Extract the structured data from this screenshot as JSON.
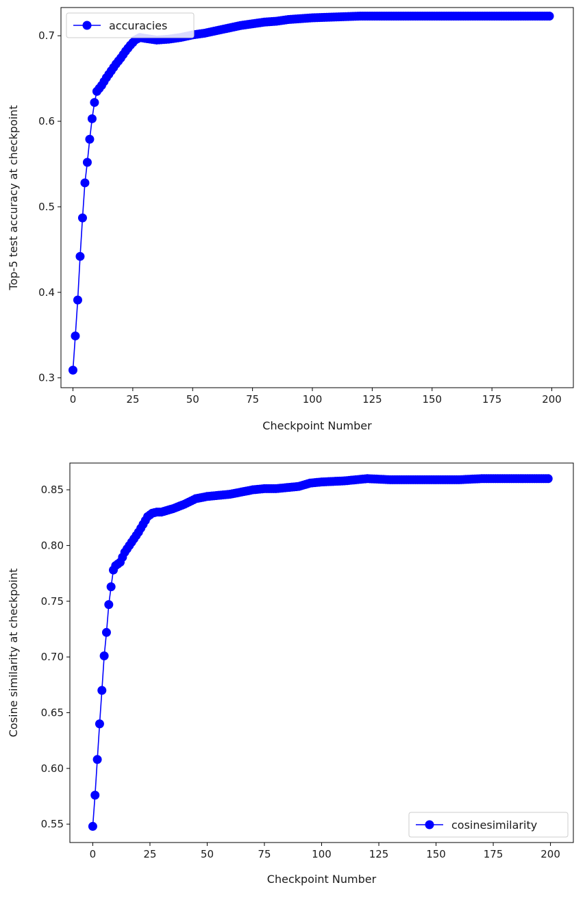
{
  "chart_data": [
    {
      "type": "line",
      "marker": "circle",
      "color": "#0000ff",
      "xlabel": "Checkpoint Number",
      "ylabel": "Top-5 test accuracy at checkpoint",
      "xlim": [
        -5,
        209
      ],
      "ylim": [
        0.2885,
        0.733
      ],
      "xticks": [
        0,
        25,
        50,
        75,
        100,
        125,
        150,
        175,
        200
      ],
      "yticks": [
        0.3,
        0.4,
        0.5,
        0.6,
        0.7
      ],
      "xtick_labels": [
        "0",
        "25",
        "50",
        "75",
        "100",
        "125",
        "150",
        "175",
        "200"
      ],
      "ytick_labels": [
        "0.3",
        "0.4",
        "0.5",
        "0.6",
        "0.7"
      ],
      "legend_position": "upper-left",
      "series": [
        {
          "name": "accuracies",
          "x": [
            0,
            199
          ],
          "y_points": [
            [
              0,
              0.309
            ],
            [
              1,
              0.349
            ],
            [
              2,
              0.391
            ],
            [
              3,
              0.442
            ],
            [
              4,
              0.487
            ],
            [
              5,
              0.528
            ],
            [
              6,
              0.552
            ],
            [
              7,
              0.579
            ],
            [
              8,
              0.603
            ],
            [
              9,
              0.622
            ],
            [
              10,
              0.635
            ],
            [
              12,
              0.642
            ],
            [
              14,
              0.651
            ],
            [
              16,
              0.659
            ],
            [
              18,
              0.667
            ],
            [
              20,
              0.674
            ],
            [
              22,
              0.682
            ],
            [
              24,
              0.689
            ],
            [
              26,
              0.695
            ],
            [
              28,
              0.698
            ],
            [
              30,
              0.697
            ],
            [
              35,
              0.695
            ],
            [
              40,
              0.696
            ],
            [
              45,
              0.698
            ],
            [
              50,
              0.701
            ],
            [
              55,
              0.703
            ],
            [
              60,
              0.706
            ],
            [
              65,
              0.709
            ],
            [
              70,
              0.712
            ],
            [
              75,
              0.714
            ],
            [
              80,
              0.716
            ],
            [
              85,
              0.717
            ],
            [
              90,
              0.719
            ],
            [
              95,
              0.72
            ],
            [
              100,
              0.721
            ],
            [
              110,
              0.722
            ],
            [
              120,
              0.723
            ],
            [
              130,
              0.723
            ],
            [
              140,
              0.723
            ],
            [
              150,
              0.723
            ],
            [
              160,
              0.723
            ],
            [
              170,
              0.723
            ],
            [
              180,
              0.723
            ],
            [
              190,
              0.723
            ],
            [
              199,
              0.723
            ]
          ]
        }
      ]
    },
    {
      "type": "line",
      "marker": "circle",
      "color": "#0000ff",
      "xlabel": "Checkpoint Number",
      "ylabel": "Cosine similarity at checkpoint",
      "xlim": [
        -10,
        210
      ],
      "ylim": [
        0.5335,
        0.874
      ],
      "xticks": [
        0,
        25,
        50,
        75,
        100,
        125,
        150,
        175,
        200
      ],
      "yticks": [
        0.55,
        0.6,
        0.65,
        0.7,
        0.75,
        0.8,
        0.85
      ],
      "xtick_labels": [
        "0",
        "25",
        "50",
        "75",
        "100",
        "125",
        "150",
        "175",
        "200"
      ],
      "ytick_labels": [
        "0.55",
        "0.60",
        "0.65",
        "0.70",
        "0.75",
        "0.80",
        "0.85"
      ],
      "legend_position": "lower-right",
      "series": [
        {
          "name": "cosinesimilarity",
          "x": [
            0,
            199
          ],
          "y_points": [
            [
              0,
              0.548
            ],
            [
              1,
              0.576
            ],
            [
              2,
              0.608
            ],
            [
              3,
              0.64
            ],
            [
              4,
              0.67
            ],
            [
              5,
              0.701
            ],
            [
              6,
              0.722
            ],
            [
              7,
              0.747
            ],
            [
              8,
              0.763
            ],
            [
              9,
              0.778
            ],
            [
              10,
              0.782
            ],
            [
              12,
              0.785
            ],
            [
              14,
              0.794
            ],
            [
              16,
              0.8
            ],
            [
              18,
              0.806
            ],
            [
              20,
              0.812
            ],
            [
              22,
              0.819
            ],
            [
              24,
              0.826
            ],
            [
              26,
              0.829
            ],
            [
              28,
              0.83
            ],
            [
              30,
              0.83
            ],
            [
              35,
              0.833
            ],
            [
              40,
              0.837
            ],
            [
              45,
              0.842
            ],
            [
              50,
              0.844
            ],
            [
              55,
              0.845
            ],
            [
              60,
              0.846
            ],
            [
              65,
              0.848
            ],
            [
              70,
              0.85
            ],
            [
              75,
              0.851
            ],
            [
              80,
              0.851
            ],
            [
              85,
              0.852
            ],
            [
              90,
              0.853
            ],
            [
              95,
              0.856
            ],
            [
              100,
              0.857
            ],
            [
              110,
              0.858
            ],
            [
              120,
              0.86
            ],
            [
              130,
              0.859
            ],
            [
              140,
              0.859
            ],
            [
              150,
              0.859
            ],
            [
              160,
              0.859
            ],
            [
              170,
              0.86
            ],
            [
              180,
              0.86
            ],
            [
              190,
              0.86
            ],
            [
              199,
              0.86
            ]
          ]
        }
      ]
    }
  ]
}
